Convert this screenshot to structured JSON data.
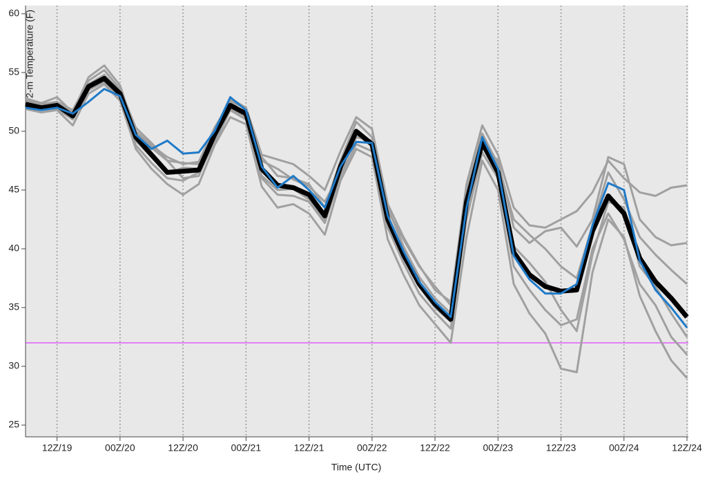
{
  "chart_data": {
    "type": "line",
    "x_label": "Time (UTC)",
    "y_label": "2-m Temperature (F)",
    "categories": [
      null,
      null,
      "12Z/19",
      null,
      null,
      null,
      "00Z/20",
      null,
      null,
      null,
      "12Z/20",
      null,
      null,
      null,
      "00Z/21",
      null,
      null,
      null,
      "12Z/21",
      null,
      null,
      null,
      "00Z/22",
      null,
      null,
      null,
      "12Z/22",
      null,
      null,
      null,
      "00Z/23",
      null,
      null,
      null,
      "12Z/23",
      null,
      null,
      null,
      "00Z/24",
      null,
      null,
      null,
      "12Z/24"
    ],
    "ylim": [
      24,
      60.7
    ],
    "yticks": [
      25,
      30,
      35,
      40,
      45,
      50,
      55,
      60
    ],
    "grid": true,
    "background": "#e8e8e8",
    "threshold": {
      "value": 32,
      "color": "#e040fb"
    },
    "series": [
      {
        "color": "#a0a0a0",
        "width": 3,
        "values": [
          52.6,
          52.3,
          52.5,
          51.8,
          54.3,
          55.2,
          53.6,
          50.3,
          49.0,
          47.5,
          47.3,
          47.2,
          50.0,
          52.8,
          52.0,
          48.0,
          47.6,
          47.2,
          46.2,
          45.0,
          48.3,
          51.2,
          50.2,
          43.8,
          41.0,
          38.6,
          36.5,
          35.5,
          45.5,
          50.5,
          48.0,
          43.5,
          42.0,
          41.8,
          42.5,
          43.2,
          44.8,
          47.5,
          46.0,
          44.8,
          44.5,
          45.2,
          45.4
        ]
      },
      {
        "color": "#a0a0a0",
        "width": 3,
        "values": [
          51.9,
          51.6,
          51.8,
          50.5,
          53.2,
          54.0,
          52.6,
          48.5,
          46.8,
          45.5,
          44.6,
          45.5,
          48.8,
          51.2,
          50.6,
          45.3,
          43.5,
          43.8,
          43.0,
          41.2,
          45.8,
          48.5,
          47.8,
          40.8,
          37.8,
          35.2,
          33.6,
          32.0,
          41.0,
          47.5,
          45.0,
          37.0,
          34.5,
          32.8,
          29.8,
          29.5,
          38.0,
          42.5,
          41.0,
          36.0,
          33.0,
          30.5,
          29.0
        ]
      },
      {
        "color": "#a0a0a0",
        "width": 3,
        "values": [
          52.8,
          52.4,
          52.9,
          51.6,
          54.6,
          55.6,
          53.9,
          49.8,
          48.6,
          47.5,
          46.0,
          46.2,
          49.3,
          52.6,
          51.9,
          47.5,
          46.8,
          45.9,
          45.3,
          44.0,
          46.5,
          49.5,
          49.2,
          43.5,
          40.2,
          37.6,
          35.8,
          34.5,
          43.0,
          48.8,
          47.5,
          41.8,
          40.5,
          41.5,
          41.8,
          40.2,
          42.5,
          47.8,
          47.2,
          42.5,
          41.0,
          40.3,
          40.5
        ]
      },
      {
        "color": "#a0a0a0",
        "width": 3,
        "values": [
          52.0,
          51.8,
          51.9,
          51.0,
          53.5,
          54.2,
          52.9,
          48.8,
          47.3,
          46.0,
          45.8,
          46.5,
          49.0,
          51.8,
          51.0,
          46.0,
          44.6,
          44.5,
          44.0,
          42.2,
          46.2,
          48.9,
          48.3,
          41.8,
          38.8,
          36.2,
          34.6,
          33.2,
          42.5,
          48.2,
          46.0,
          38.5,
          36.5,
          34.8,
          33.5,
          34.0,
          40.0,
          43.0,
          40.8,
          37.0,
          35.2,
          32.5,
          31.0
        ]
      },
      {
        "color": "#a0a0a0",
        "width": 3,
        "values": [
          52.5,
          52.2,
          52.4,
          51.7,
          54.0,
          54.8,
          53.4,
          50.0,
          48.8,
          47.8,
          47.2,
          47.4,
          50.3,
          52.5,
          51.5,
          47.8,
          46.2,
          46.0,
          45.5,
          43.5,
          47.5,
          50.8,
          49.5,
          43.2,
          40.8,
          38.5,
          36.8,
          35.2,
          44.8,
          49.8,
          47.2,
          42.5,
          41.2,
          40.0,
          38.5,
          37.5,
          42.0,
          46.5,
          44.2,
          41.0,
          39.5,
          38.2,
          37.0
        ]
      },
      {
        "color": "#a0a0a0",
        "width": 3,
        "values": [
          52.1,
          51.9,
          52.0,
          51.2,
          53.9,
          54.6,
          53.1,
          49.2,
          47.8,
          46.4,
          46.9,
          46.8,
          49.9,
          52.0,
          51.2,
          46.2,
          45.0,
          45.1,
          44.2,
          42.5,
          46.8,
          49.8,
          48.7,
          42.3,
          39.2,
          36.8,
          35.0,
          33.8,
          44.2,
          49.2,
          46.3,
          40.2,
          38.8,
          37.2,
          34.8,
          33.0,
          39.5,
          44.0,
          43.5,
          38.5,
          36.8,
          34.5,
          32.5
        ]
      },
      {
        "color": "#000000",
        "width": 7,
        "values": [
          52.3,
          52.0,
          52.2,
          51.3,
          53.8,
          54.5,
          53.2,
          49.5,
          48.0,
          46.5,
          46.6,
          46.7,
          49.7,
          52.2,
          51.5,
          46.8,
          45.4,
          45.2,
          44.6,
          42.8,
          47.0,
          50.0,
          48.9,
          42.5,
          39.5,
          37.0,
          35.3,
          34.0,
          44.0,
          49.0,
          46.5,
          39.7,
          37.8,
          36.8,
          36.4,
          36.5,
          41.5,
          44.5,
          43.0,
          39.2,
          37.2,
          35.8,
          34.2
        ]
      },
      {
        "color": "#1f7ac8",
        "width": 3,
        "values": [
          52.0,
          51.8,
          52.0,
          51.5,
          52.5,
          53.6,
          53.0,
          49.7,
          48.5,
          49.2,
          48.1,
          48.2,
          50.0,
          52.9,
          51.8,
          47.0,
          45.2,
          46.2,
          45.0,
          43.5,
          47.0,
          49.1,
          49.0,
          42.8,
          39.8,
          37.2,
          35.5,
          34.2,
          43.5,
          49.5,
          46.8,
          39.4,
          37.4,
          36.2,
          36.2,
          37.0,
          42.0,
          45.6,
          45.0,
          39.0,
          36.5,
          35.0,
          33.3
        ]
      }
    ]
  }
}
